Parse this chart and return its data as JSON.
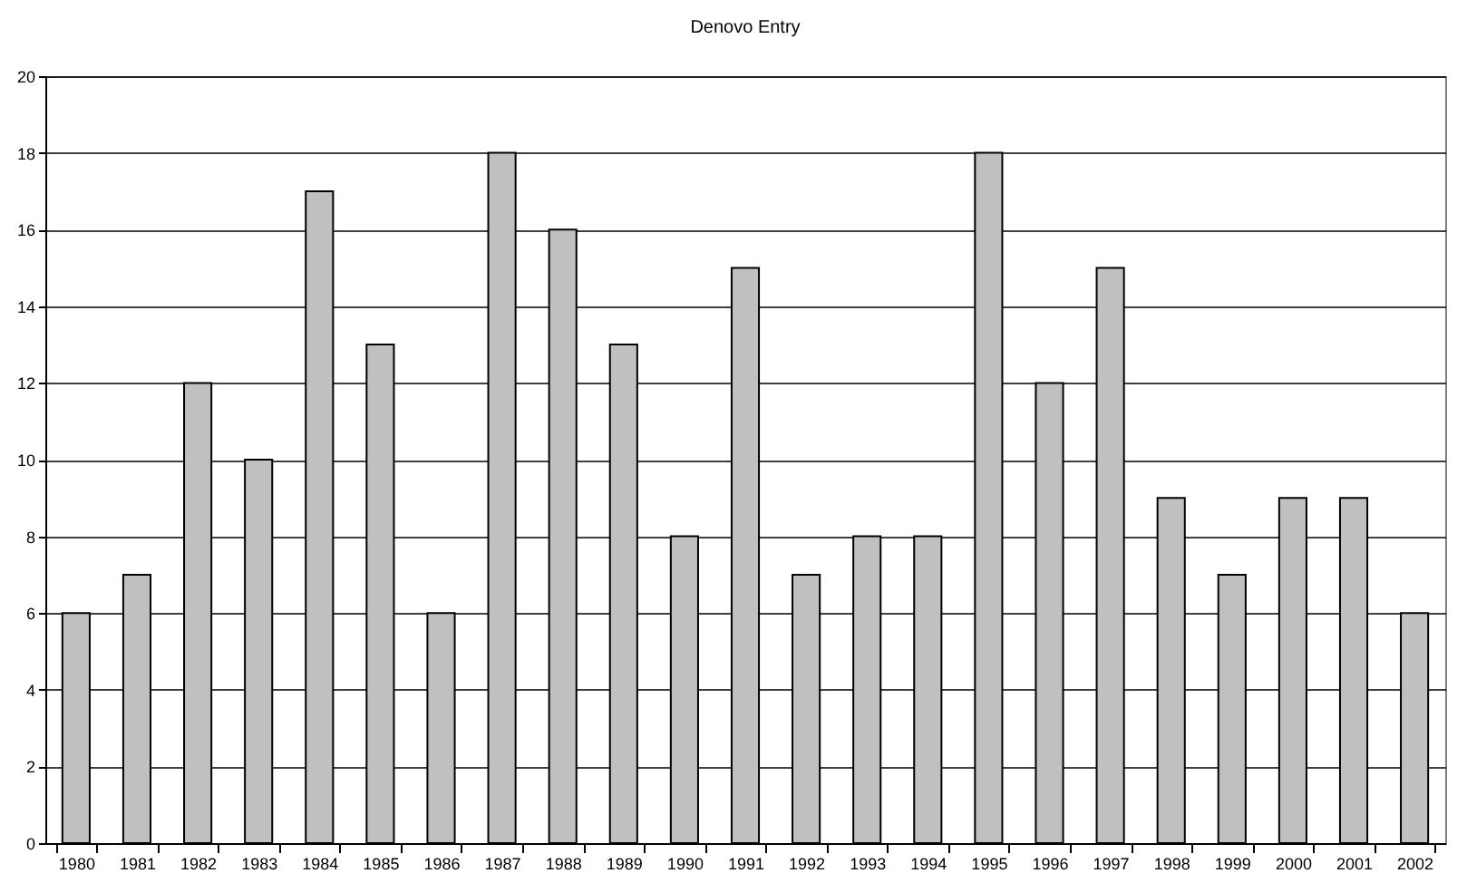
{
  "chart_data": {
    "type": "bar",
    "title": "Denovo Entry",
    "categories": [
      "1980",
      "1981",
      "1982",
      "1983",
      "1984",
      "1985",
      "1986",
      "1987",
      "1988",
      "1989",
      "1990",
      "1991",
      "1992",
      "1993",
      "1994",
      "1995",
      "1996",
      "1997",
      "1998",
      "1999",
      "2000",
      "2001",
      "2002"
    ],
    "values": [
      6,
      7,
      12,
      10,
      17,
      13,
      6,
      18,
      16,
      13,
      8,
      15,
      7,
      8,
      8,
      18,
      12,
      15,
      9,
      7,
      9,
      9,
      6
    ],
    "color": "#c0c0c0",
    "ylim": [
      0,
      20
    ],
    "yticks": [
      0,
      2,
      4,
      6,
      8,
      10,
      12,
      14,
      16,
      18,
      20
    ],
    "grid": "y"
  }
}
